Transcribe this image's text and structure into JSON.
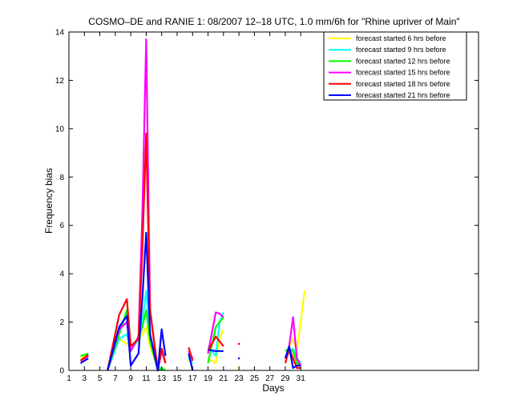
{
  "chart_data": {
    "type": "line",
    "title": "COSMO–DE and RANIE 1: 08/2007 12–18 UTC, 1.0 mm/6h for \"Rhine upriver of Main\"",
    "xlabel": "Days",
    "ylabel": "Frequency bias",
    "xlim": [
      1,
      54
    ],
    "ylim": [
      0,
      14
    ],
    "xticks": [
      1,
      3,
      5,
      7,
      9,
      11,
      13,
      15,
      17,
      19,
      21,
      23,
      25,
      27,
      29,
      31
    ],
    "yticks": [
      0,
      2,
      4,
      6,
      8,
      10,
      12,
      14
    ],
    "grid": false,
    "legend_position": "top-right",
    "series": [
      {
        "name": "forecast started 6 hrs before",
        "color": "#ffff00",
        "points": [
          [
            2.5,
            0.5
          ],
          [
            3.5,
            0.7
          ],
          null,
          [
            6,
            0
          ],
          [
            7.5,
            1.3
          ],
          [
            8.5,
            1.1
          ],
          [
            9,
            1
          ],
          [
            10,
            1.2
          ],
          [
            10.5,
            1.5
          ],
          [
            11,
            1.8
          ],
          [
            11.5,
            1.0
          ],
          [
            12.5,
            0.1
          ],
          [
            13,
            0.1
          ],
          [
            13.5,
            0.1
          ],
          null,
          [
            16.5,
            0.4
          ],
          [
            17,
            0.3
          ],
          null,
          [
            19,
            0.5
          ],
          [
            20,
            0.3
          ],
          [
            20.5,
            1.3
          ],
          [
            21,
            1.7
          ],
          null,
          [
            29,
            0.5
          ],
          [
            29.5,
            1.0
          ],
          [
            30,
            1.3
          ],
          [
            30.5,
            0.8
          ],
          [
            31,
            2.0
          ],
          [
            31.5,
            3.3
          ]
        ]
      },
      {
        "name": "forecast started 9 hrs before",
        "color": "#00ffff",
        "points": [
          [
            2.5,
            0.4
          ],
          [
            3.5,
            0.6
          ],
          null,
          [
            6,
            0
          ],
          [
            7.5,
            1.3
          ],
          [
            8.5,
            1.5
          ],
          [
            9,
            0.8
          ],
          [
            10,
            1.3
          ],
          [
            10.5,
            2.0
          ],
          [
            11,
            3.3
          ],
          [
            11.5,
            1.5
          ],
          [
            12.5,
            0.1
          ],
          [
            13,
            0.1
          ],
          [
            13.5,
            0
          ],
          null,
          [
            16.5,
            0.5
          ],
          [
            17,
            0.3
          ],
          null,
          [
            19,
            1.0
          ],
          [
            20,
            0.6
          ],
          [
            20.5,
            2.0
          ],
          [
            21,
            2.4
          ],
          null,
          [
            29,
            0.6
          ],
          [
            29.5,
            0.7
          ],
          [
            30,
            0.9
          ],
          [
            30.5,
            0.5
          ],
          [
            31,
            0.3
          ]
        ]
      },
      {
        "name": "forecast started 12 hrs before",
        "color": "#00ff00",
        "points": [
          [
            2.5,
            0.6
          ],
          [
            3.5,
            0.7
          ],
          null,
          [
            6,
            0
          ],
          [
            7.5,
            1.5
          ],
          [
            8.5,
            2.5
          ],
          [
            9,
            1.0
          ],
          [
            10,
            1.3
          ],
          [
            10.5,
            1.8
          ],
          [
            11,
            2.5
          ],
          [
            11.5,
            1.2
          ],
          [
            12.5,
            0
          ],
          [
            13,
            0.05
          ],
          [
            13.5,
            0
          ],
          null,
          [
            16.5,
            0.6
          ],
          [
            17,
            0.5
          ],
          null,
          [
            19,
            0.3
          ],
          [
            20,
            1.8
          ],
          [
            20.5,
            2.0
          ],
          [
            21,
            2.2
          ],
          null,
          [
            29,
            0.8
          ],
          [
            29.5,
            0.9
          ],
          [
            30,
            0.8
          ],
          [
            30.5,
            0.3
          ],
          [
            31,
            0.2
          ]
        ]
      },
      {
        "name": "forecast started 15 hrs before",
        "color": "#ff00ff",
        "points": [
          [
            2.5,
            0.4
          ],
          [
            3.5,
            0.6
          ],
          null,
          [
            6,
            0
          ],
          [
            7.5,
            1.7
          ],
          [
            8.5,
            2.0
          ],
          [
            9,
            0.8
          ],
          [
            10,
            1.4
          ],
          [
            10.5,
            6.5
          ],
          [
            11,
            13.7
          ],
          [
            11.5,
            2.5
          ],
          [
            12.5,
            0
          ],
          [
            13,
            0.8
          ],
          [
            13.5,
            0.3
          ],
          null,
          [
            16.5,
            0.8
          ],
          [
            17,
            0.5
          ],
          null,
          [
            19,
            0.7
          ],
          [
            20,
            2.4
          ],
          [
            20.5,
            2.35
          ],
          [
            21,
            2.2
          ],
          null,
          [
            29,
            0.5
          ],
          [
            29.5,
            1.0
          ],
          [
            30,
            2.2
          ],
          [
            30.5,
            0.5
          ],
          [
            31,
            0.2
          ]
        ]
      },
      {
        "name": "forecast started 18 hrs before",
        "color": "#ff0000",
        "points": [
          [
            2.5,
            0.4
          ],
          [
            3.5,
            0.65
          ],
          null,
          [
            6,
            0
          ],
          [
            7.5,
            2.3
          ],
          [
            8.5,
            2.95
          ],
          [
            9,
            1.0
          ],
          [
            10,
            1.3
          ],
          [
            10.5,
            5.0
          ],
          [
            11,
            9.8
          ],
          [
            11.5,
            2.5
          ],
          [
            12.5,
            0
          ],
          [
            13,
            0.9
          ],
          [
            13.5,
            0.3
          ],
          null,
          [
            16.5,
            0.95
          ],
          [
            17,
            0.4
          ],
          null,
          [
            19,
            0.8
          ],
          [
            20,
            1.4
          ],
          [
            20.5,
            1.2
          ],
          [
            21,
            1.0
          ],
          null,
          [
            29,
            0.3
          ],
          [
            29.5,
            0.9
          ],
          [
            30,
            0.5
          ],
          [
            30.5,
            0.1
          ],
          [
            31,
            0.1
          ]
        ]
      },
      {
        "name": "forecast started 21 hrs before",
        "color": "#0000ff",
        "points": [
          [
            2.5,
            0.3
          ],
          [
            3.5,
            0.5
          ],
          null,
          [
            6,
            0
          ],
          [
            7.5,
            1.8
          ],
          [
            8.5,
            2.25
          ],
          [
            9,
            0.2
          ],
          [
            10,
            0.7
          ],
          [
            10.5,
            3.0
          ],
          [
            11,
            5.7
          ],
          [
            11.5,
            1.5
          ],
          [
            12.5,
            0
          ],
          [
            13,
            1.7
          ],
          [
            13.5,
            0.6
          ],
          null,
          [
            16.5,
            0.7
          ],
          [
            17,
            0
          ],
          null,
          [
            19,
            0.85
          ],
          [
            20,
            0.8
          ],
          [
            20.5,
            0.8
          ],
          [
            21,
            0.8
          ],
          null,
          [
            29,
            0.5
          ],
          [
            29.5,
            1.0
          ],
          [
            30,
            0.1
          ],
          [
            30.5,
            0.2
          ],
          [
            31,
            0.2
          ]
        ]
      }
    ],
    "isolated_points": [
      {
        "x": 23,
        "y": 1.1,
        "color": "#ff0000"
      },
      {
        "x": 23,
        "y": 0.5,
        "color": "#0000ff"
      },
      {
        "x": 23,
        "y": 0.1,
        "color": "#ffff00"
      }
    ]
  }
}
